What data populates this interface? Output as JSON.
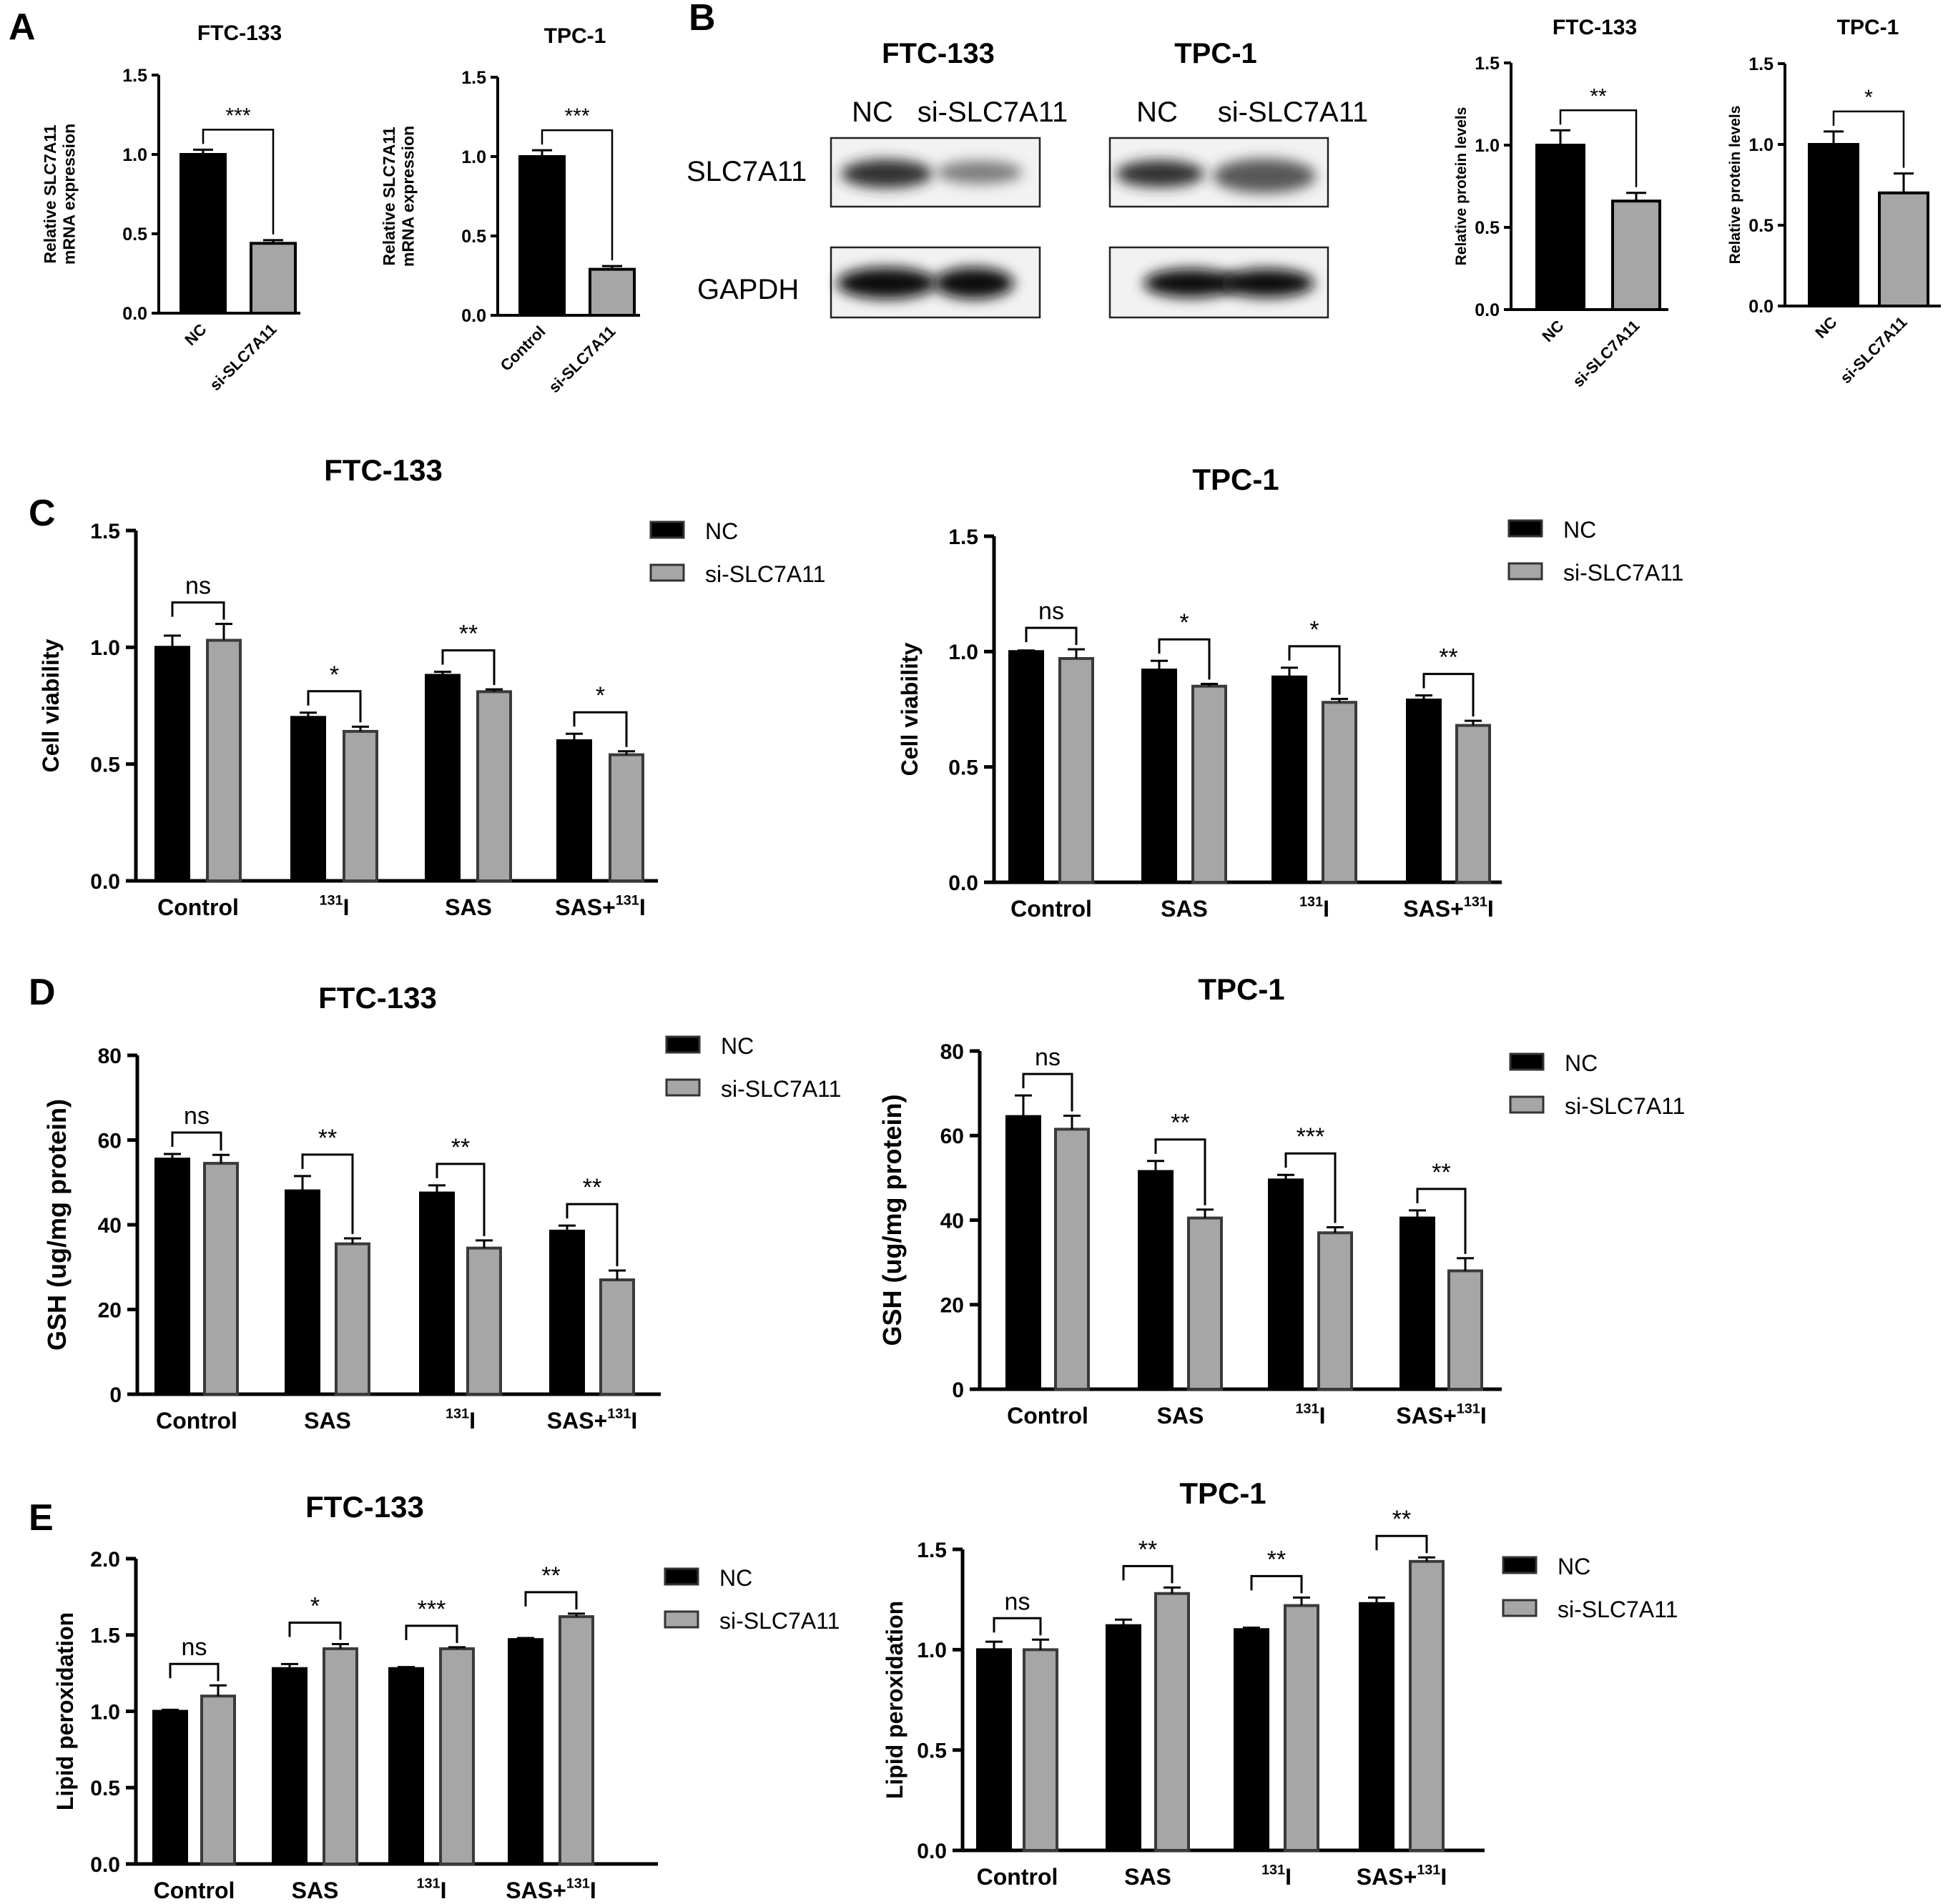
{
  "panel_labels": [
    "A",
    "B",
    "C",
    "D",
    "E"
  ],
  "colors": {
    "nc": "#000000",
    "si": "#a6a6a6",
    "axis": "#000000"
  },
  "blot": {
    "cells": [
      "FTC-133",
      "TPC-1"
    ],
    "lanes": [
      "NC",
      "si-SLC7A11"
    ],
    "proteins": [
      "SLC7A11",
      "GAPDH"
    ]
  },
  "chart_data": [
    {
      "id": "A1",
      "type": "bar",
      "title": "FTC-133",
      "ylabel": "Relative SLC7A11 mRNA expression",
      "ylabel_lines": [
        "Relative SLC7A11",
        "mRNA expression"
      ],
      "ylim": [
        0,
        1.5
      ],
      "yticks": [
        "0.0",
        "0.5",
        "1.0",
        "1.5"
      ],
      "categories": [
        "NC",
        "si-SLC7A11"
      ],
      "values": [
        1.0,
        0.44
      ],
      "errors": [
        0.03,
        0.02
      ],
      "significance": [
        "***"
      ]
    },
    {
      "id": "A2",
      "type": "bar",
      "title": "TPC-1",
      "ylabel": "Relative SLC7A11 mRNA expression",
      "ylabel_lines": [
        "Relative SLC7A11",
        "mRNA expression"
      ],
      "ylim": [
        0,
        1.5
      ],
      "yticks": [
        "0.0",
        "0.5",
        "1.0",
        "1.5"
      ],
      "categories": [
        "Control",
        "si-SLC7A11"
      ],
      "values": [
        1.0,
        0.29
      ],
      "errors": [
        0.04,
        0.02
      ],
      "significance": [
        "***"
      ]
    },
    {
      "id": "B1",
      "type": "bar",
      "title": "FTC-133",
      "ylabel": "Relative protein levels",
      "ylim": [
        0,
        1.5
      ],
      "yticks": [
        "0.0",
        "0.5",
        "1.0",
        "1.5"
      ],
      "categories": [
        "NC",
        "si-SLC7A11"
      ],
      "values": [
        1.0,
        0.66
      ],
      "errors": [
        0.09,
        0.05
      ],
      "significance": [
        "**"
      ]
    },
    {
      "id": "B2",
      "type": "bar",
      "title": "TPC-1",
      "ylabel": "Relative protein levels",
      "ylim": [
        0,
        1.5
      ],
      "yticks": [
        "0.0",
        "0.5",
        "1.0",
        "1.5"
      ],
      "categories": [
        "NC",
        "si-SLC7A11"
      ],
      "values": [
        1.0,
        0.7
      ],
      "errors": [
        0.08,
        0.12
      ],
      "significance": [
        "*"
      ]
    },
    {
      "id": "C1",
      "type": "bar",
      "title": "FTC-133",
      "ylabel": "Cell viability",
      "ylim": [
        0,
        1.5
      ],
      "yticks": [
        "0.0",
        "0.5",
        "1.0",
        "1.5"
      ],
      "categories": [
        "Control",
        "131|I",
        "SAS",
        "SAS+|131|I"
      ],
      "series": [
        {
          "name": "NC",
          "values": [
            1.0,
            0.7,
            0.88,
            0.6
          ],
          "errors": [
            0.05,
            0.02,
            0.015,
            0.03
          ]
        },
        {
          "name": "si-SLC7A11",
          "values": [
            1.03,
            0.64,
            0.81,
            0.54
          ],
          "errors": [
            0.07,
            0.02,
            0.01,
            0.015
          ]
        }
      ],
      "significance": [
        "ns",
        "*",
        "**",
        "*"
      ]
    },
    {
      "id": "C2",
      "type": "bar",
      "title": "TPC-1",
      "ylabel": "Cell viability",
      "ylim": [
        0,
        1.5
      ],
      "yticks": [
        "0.0",
        "0.5",
        "1.0",
        "1.5"
      ],
      "categories": [
        "Control",
        "SAS",
        "131|I",
        "SAS+|131|I"
      ],
      "series": [
        {
          "name": "NC",
          "values": [
            1.0,
            0.92,
            0.89,
            0.79
          ],
          "errors": [
            0.005,
            0.04,
            0.04,
            0.02
          ]
        },
        {
          "name": "si-SLC7A11",
          "values": [
            0.97,
            0.85,
            0.78,
            0.68
          ],
          "errors": [
            0.04,
            0.01,
            0.015,
            0.02
          ]
        }
      ],
      "significance": [
        "ns",
        "*",
        "*",
        "**"
      ]
    },
    {
      "id": "D1",
      "type": "bar",
      "title": "FTC-133",
      "ylabel": "GSH (ug/mg protein)",
      "ylim": [
        0,
        80
      ],
      "yticks": [
        "0",
        "20",
        "40",
        "60",
        "80"
      ],
      "categories": [
        "Control",
        "SAS",
        "131|I",
        "SAS+|131|I"
      ],
      "series": [
        {
          "name": "NC",
          "values": [
            55.5,
            48,
            47.5,
            38.5
          ],
          "errors": [
            1.2,
            3.5,
            1.8,
            1.3
          ]
        },
        {
          "name": "si-SLC7A11",
          "values": [
            54.5,
            35.5,
            34.5,
            27
          ],
          "errors": [
            2,
            1.3,
            1.8,
            2.2
          ]
        }
      ],
      "significance": [
        "ns",
        "**",
        "**",
        "**"
      ]
    },
    {
      "id": "D2",
      "type": "bar",
      "title": "TPC-1",
      "ylabel": "GSH (ug/mg protein)",
      "ylim": [
        0,
        80
      ],
      "yticks": [
        "0",
        "20",
        "40",
        "60",
        "80"
      ],
      "categories": [
        "Control",
        "SAS",
        "131|I",
        "SAS+|131|I"
      ],
      "series": [
        {
          "name": "NC",
          "values": [
            64.5,
            51.5,
            49.5,
            40.5
          ],
          "errors": [
            5,
            2.5,
            1.2,
            1.8
          ]
        },
        {
          "name": "si-SLC7A11",
          "values": [
            61.5,
            40.5,
            37,
            28
          ],
          "errors": [
            3.2,
            2,
            1.3,
            3
          ]
        }
      ],
      "significance": [
        "ns",
        "**",
        "***",
        "**"
      ]
    },
    {
      "id": "E1",
      "type": "bar",
      "title": "FTC-133",
      "ylabel": "Lipid peroxidation",
      "ylim": [
        0,
        2.0
      ],
      "yticks": [
        "0.0",
        "0.5",
        "1.0",
        "1.5",
        "2.0"
      ],
      "categories": [
        "Control",
        "SAS",
        "131|I",
        "SAS+|131|I"
      ],
      "series": [
        {
          "name": "NC",
          "values": [
            1.0,
            1.28,
            1.28,
            1.47
          ],
          "errors": [
            0.01,
            0.03,
            0.01,
            0.01
          ]
        },
        {
          "name": "si-SLC7A11",
          "values": [
            1.1,
            1.41,
            1.41,
            1.62
          ],
          "errors": [
            0.07,
            0.03,
            0.01,
            0.02
          ]
        }
      ],
      "significance": [
        "ns",
        "*",
        "***",
        "**"
      ]
    },
    {
      "id": "E2",
      "type": "bar",
      "title": "TPC-1",
      "ylabel": "Lipid peroxidation",
      "ylim": [
        0,
        1.5
      ],
      "yticks": [
        "0.0",
        "0.5",
        "1.0",
        "1.5"
      ],
      "categories": [
        "Control",
        "SAS",
        "131|I",
        "SAS+|131|I"
      ],
      "series": [
        {
          "name": "NC",
          "values": [
            1.0,
            1.12,
            1.1,
            1.23
          ],
          "errors": [
            0.04,
            0.03,
            0.01,
            0.03
          ]
        },
        {
          "name": "si-SLC7A11",
          "values": [
            1.0,
            1.28,
            1.22,
            1.44
          ],
          "errors": [
            0.05,
            0.03,
            0.04,
            0.02
          ]
        }
      ],
      "significance": [
        "ns",
        "**",
        "**",
        "**"
      ]
    }
  ]
}
